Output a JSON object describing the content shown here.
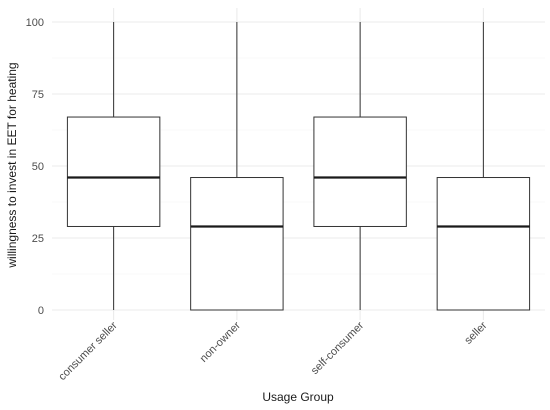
{
  "chart_data": {
    "type": "box",
    "title": "",
    "xlabel": "Usage Group",
    "ylabel": "willingness to invest in EET for heating",
    "ylim": [
      0,
      100
    ],
    "yticks": [
      0,
      25,
      50,
      75,
      100
    ],
    "grid": true,
    "legend": "none",
    "categories": [
      "consumer seller",
      "non-owner",
      "self-consumer",
      "seller"
    ],
    "boxes": [
      {
        "category": "consumer seller",
        "min": 0,
        "q1": 29,
        "median": 46,
        "q3": 67,
        "max": 100
      },
      {
        "category": "non-owner",
        "min": 0,
        "q1": 0,
        "median": 29,
        "q3": 46,
        "max": 100
      },
      {
        "category": "self-consumer",
        "min": 0,
        "q1": 29,
        "median": 46,
        "q3": 67,
        "max": 100
      },
      {
        "category": "seller",
        "min": 0,
        "q1": 0,
        "median": 29,
        "q3": 46,
        "max": 100
      }
    ],
    "colors": {
      "box_fill": "#ffffff",
      "box_stroke": "#333333",
      "median": "#1a1a1a",
      "grid_major": "#ebebeb",
      "grid_minor": "#f5f5f5"
    }
  }
}
